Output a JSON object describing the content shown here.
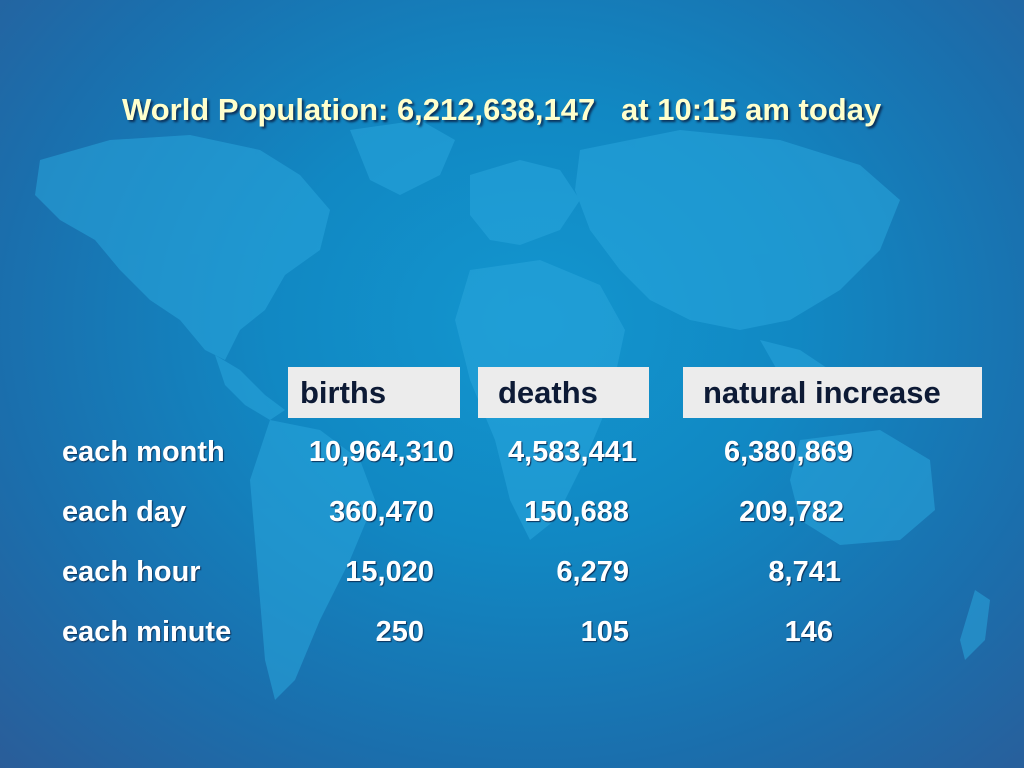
{
  "title": {
    "label": "World Population: 6,212,638,147",
    "time": "at 10:15 am today"
  },
  "headers": [
    "births",
    "deaths",
    "natural increase"
  ],
  "rows": [
    {
      "label": "each month",
      "values": [
        "10,964,310",
        "4,583,441",
        "6,380,869"
      ]
    },
    {
      "label": "each day",
      "values": [
        "360,470",
        "150,688",
        "209,782"
      ]
    },
    {
      "label": "each hour",
      "values": [
        "15,020",
        "6,279",
        "8,741"
      ]
    },
    {
      "label": "each minute",
      "values": [
        "250",
        "105",
        "146"
      ]
    }
  ],
  "colors": {
    "background": "#1188c3",
    "continents": "#2aa6dd",
    "title_text": "#ffffcc",
    "header_box": "#ececec"
  }
}
